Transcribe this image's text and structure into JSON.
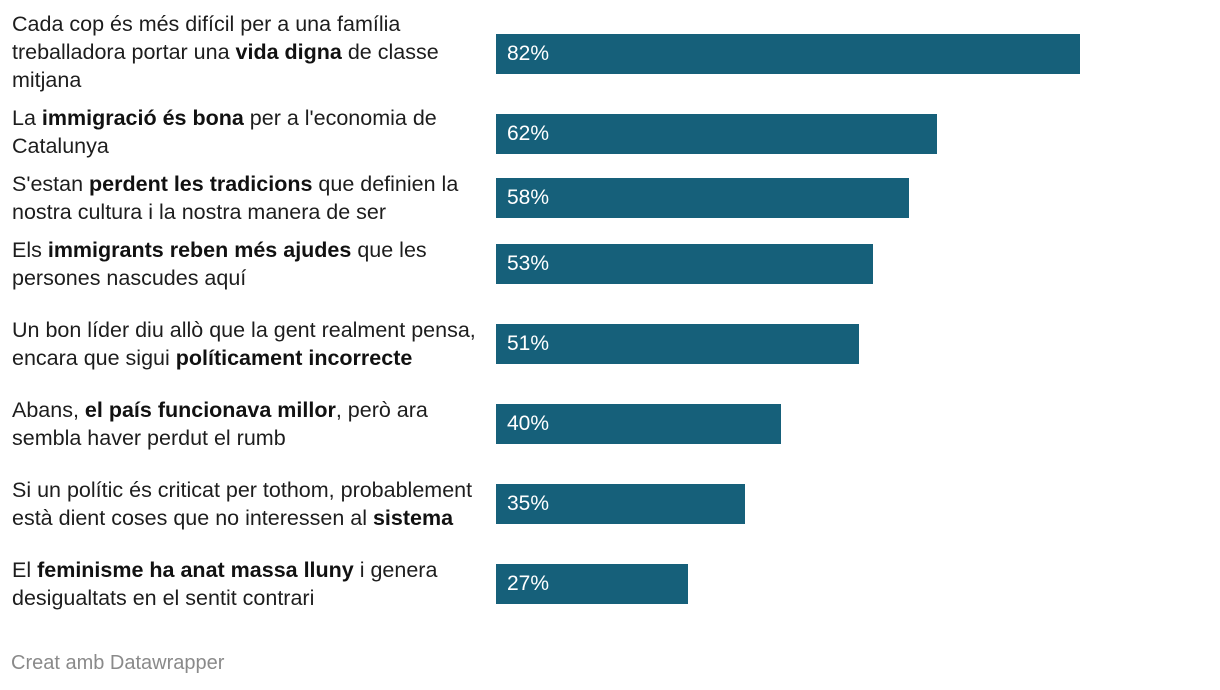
{
  "chart_data": {
    "type": "bar",
    "orientation": "horizontal",
    "title": "",
    "xlabel": "",
    "ylabel": "",
    "xlim": [
      0,
      100
    ],
    "value_suffix": "%",
    "bar_color": "#16607a",
    "categories": [
      [
        {
          "text": "Cada cop és més difícil per a una família treballadora portar una "
        },
        {
          "text": "vida digna",
          "bold": true
        },
        {
          "text": " de classe mitjana"
        }
      ],
      [
        {
          "text": "La "
        },
        {
          "text": "immigració és bona",
          "bold": true
        },
        {
          "text": " per a l'economia de Catalunya"
        }
      ],
      [
        {
          "text": "S'estan "
        },
        {
          "text": "perdent les tradicions",
          "bold": true
        },
        {
          "text": " que definien la nostra cultura i la nostra manera de ser"
        }
      ],
      [
        {
          "text": "Els "
        },
        {
          "text": "immigrants reben més ajudes",
          "bold": true
        },
        {
          "text": " que les persones nascudes aquí"
        }
      ],
      [
        {
          "text": "Un bon líder diu allò que la gent realment pensa, encara que sigui "
        },
        {
          "text": "políticament incorrecte",
          "bold": true
        }
      ],
      [
        {
          "text": "Abans, "
        },
        {
          "text": "el país funcionava millor",
          "bold": true
        },
        {
          "text": ", però ara sembla haver perdut el rumb"
        }
      ],
      [
        {
          "text": "Si un polític és criticat per tothom, probablement està dient coses que no interessen al "
        },
        {
          "text": "sistema",
          "bold": true
        }
      ],
      [
        {
          "text": "El "
        },
        {
          "text": "feminisme ha anat massa lluny",
          "bold": true
        },
        {
          "text": " i genera desigualtats en el sentit contrari"
        }
      ]
    ],
    "values": [
      82,
      62,
      58,
      53,
      51,
      40,
      35,
      27
    ]
  },
  "footer": {
    "credit": "Creat amb Datawrapper"
  }
}
